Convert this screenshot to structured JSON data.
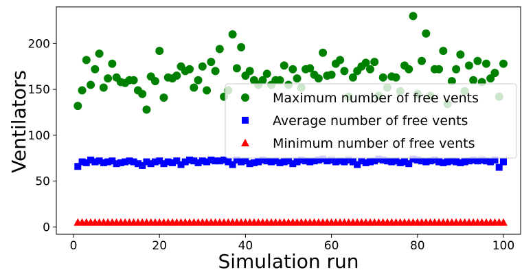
{
  "chart_data": {
    "type": "scatter",
    "xlabel": "Simulation run",
    "ylabel": "Ventilators",
    "xlim": [
      -4,
      104
    ],
    "ylim": [
      -8,
      240
    ],
    "xticks": [
      0,
      20,
      40,
      60,
      80,
      100
    ],
    "yticks": [
      0,
      50,
      100,
      150,
      200
    ],
    "grid": false,
    "legend_position": "center-right",
    "x": [
      1,
      2,
      3,
      4,
      5,
      6,
      7,
      8,
      9,
      10,
      11,
      12,
      13,
      14,
      15,
      16,
      17,
      18,
      19,
      20,
      21,
      22,
      23,
      24,
      25,
      26,
      27,
      28,
      29,
      30,
      31,
      32,
      33,
      34,
      35,
      36,
      37,
      38,
      39,
      40,
      41,
      42,
      43,
      44,
      45,
      46,
      47,
      48,
      49,
      50,
      51,
      52,
      53,
      54,
      55,
      56,
      57,
      58,
      59,
      60,
      61,
      62,
      63,
      64,
      65,
      66,
      67,
      68,
      69,
      70,
      71,
      72,
      73,
      74,
      75,
      76,
      77,
      78,
      79,
      80,
      81,
      82,
      83,
      84,
      85,
      86,
      87,
      88,
      89,
      90,
      91,
      92,
      93,
      94,
      95,
      96,
      97,
      98,
      99,
      100
    ],
    "series": [
      {
        "name": "Maximum number of free vents",
        "marker": "circle",
        "color": "#008000",
        "values": [
          132,
          149,
          182,
          155,
          172,
          189,
          152,
          162,
          178,
          163,
          158,
          157,
          160,
          160,
          149,
          145,
          128,
          164,
          159,
          192,
          141,
          163,
          162,
          165,
          175,
          170,
          172,
          152,
          160,
          175,
          149,
          180,
          170,
          194,
          142,
          149,
          210,
          173,
          196,
          165,
          170,
          160,
          155,
          160,
          167,
          155,
          160,
          160,
          176,
          155,
          172,
          162,
          152,
          172,
          173,
          166,
          162,
          190,
          165,
          166,
          178,
          182,
          170,
          142,
          163,
          170,
          175,
          179,
          172,
          180,
          143,
          163,
          152,
          164,
          163,
          148,
          176,
          172,
          230,
          145,
          181,
          211,
          143,
          172,
          172,
          192,
          134,
          159,
          172,
          188,
          148,
          176,
          160,
          181,
          158,
          178,
          162,
          168,
          142,
          178
        ]
      },
      {
        "name": "Average number of free vents",
        "marker": "square",
        "color": "#0000ff",
        "values": [
          66,
          71,
          70,
          73,
          71,
          72,
          70,
          71,
          72,
          69,
          70,
          71,
          72,
          71,
          69,
          67,
          71,
          69,
          71,
          72,
          69,
          71,
          70,
          72,
          68,
          71,
          73,
          72,
          70,
          72,
          71,
          73,
          72,
          72,
          73,
          71,
          68,
          73,
          71,
          72,
          69,
          70,
          71,
          73,
          72,
          71,
          72,
          70,
          71,
          72,
          69,
          71,
          73,
          72,
          71,
          72,
          73,
          74,
          72,
          73,
          71,
          72,
          71,
          73,
          71,
          68,
          72,
          70,
          71,
          72,
          74,
          73,
          72,
          71,
          72,
          70,
          71,
          69,
          74,
          73,
          72,
          71,
          72,
          73,
          71,
          70,
          71,
          72,
          71,
          70,
          71,
          72,
          73,
          72,
          73,
          72,
          71,
          73,
          65,
          71
        ]
      },
      {
        "name": "Minimum number of free vents",
        "marker": "triangle",
        "color": "#ff0000",
        "values": [
          5,
          5,
          5,
          5,
          5,
          5,
          5,
          5,
          5,
          5,
          5,
          5,
          5,
          5,
          5,
          5,
          5,
          5,
          5,
          5,
          5,
          5,
          5,
          5,
          5,
          5,
          5,
          5,
          5,
          5,
          5,
          5,
          5,
          5,
          5,
          5,
          5,
          5,
          5,
          5,
          5,
          5,
          5,
          5,
          5,
          5,
          5,
          5,
          5,
          5,
          5,
          5,
          5,
          5,
          5,
          5,
          5,
          5,
          5,
          5,
          5,
          5,
          5,
          5,
          5,
          5,
          5,
          5,
          5,
          5,
          5,
          5,
          5,
          5,
          5,
          5,
          5,
          5,
          5,
          5,
          5,
          5,
          5,
          5,
          5,
          5,
          5,
          5,
          5,
          5,
          5,
          5,
          5,
          5,
          5,
          5,
          5,
          5,
          5,
          5
        ]
      }
    ]
  }
}
